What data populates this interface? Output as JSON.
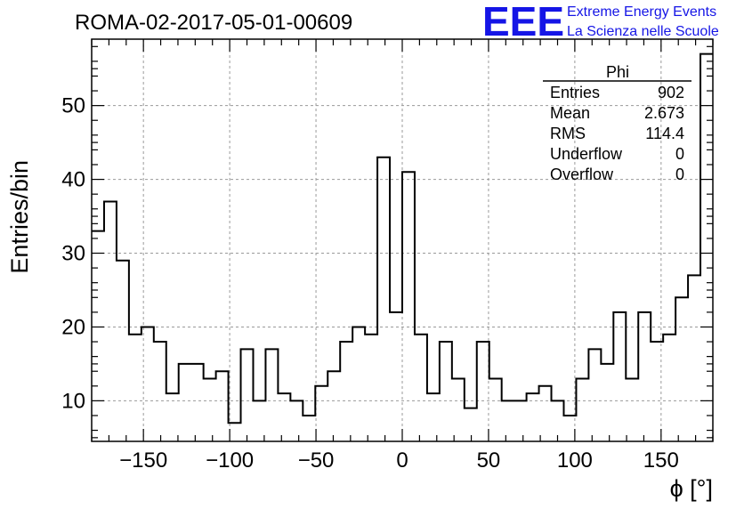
{
  "chart_data": {
    "type": "histogram",
    "title": "ROMA-02-2017-05-01-00609",
    "xlabel": "ϕ [°]",
    "ylabel": "Entries/bin",
    "xlim": [
      -180,
      180
    ],
    "ylim": [
      4.5,
      59
    ],
    "grid": true,
    "xticks": [
      -150,
      -100,
      -50,
      0,
      50,
      100,
      150
    ],
    "xtick_labels": [
      "−150",
      "−100",
      "−50",
      "0",
      "50",
      "100",
      "150"
    ],
    "yticks": [
      10,
      20,
      30,
      40,
      50
    ],
    "bin_width": 7.2,
    "bin_start": -180,
    "values": [
      33,
      37,
      29,
      19,
      20,
      18,
      11,
      15,
      15,
      13,
      14,
      7,
      17,
      10,
      17,
      11,
      10,
      8,
      12,
      14,
      18,
      20,
      19,
      43,
      22,
      41,
      19,
      11,
      18,
      13,
      9,
      18,
      13,
      10,
      10,
      11,
      12,
      10,
      8,
      13,
      17,
      15,
      22,
      13,
      22,
      18,
      19,
      24,
      27,
      57
    ],
    "line_color": "#000000"
  },
  "stats_box": {
    "title": "Phi",
    "rows": [
      {
        "label": "Entries",
        "value": "902"
      },
      {
        "label": "Mean",
        "value": "2.673"
      },
      {
        "label": "RMS",
        "value": "114.4"
      },
      {
        "label": "Underflow",
        "value": "0"
      },
      {
        "label": "Overflow",
        "value": "0"
      }
    ]
  },
  "logo": {
    "mark": "EEE",
    "line1": "Extreme Energy Events",
    "line2": "La Scienza nelle Scuole",
    "color": "#1515e6"
  }
}
